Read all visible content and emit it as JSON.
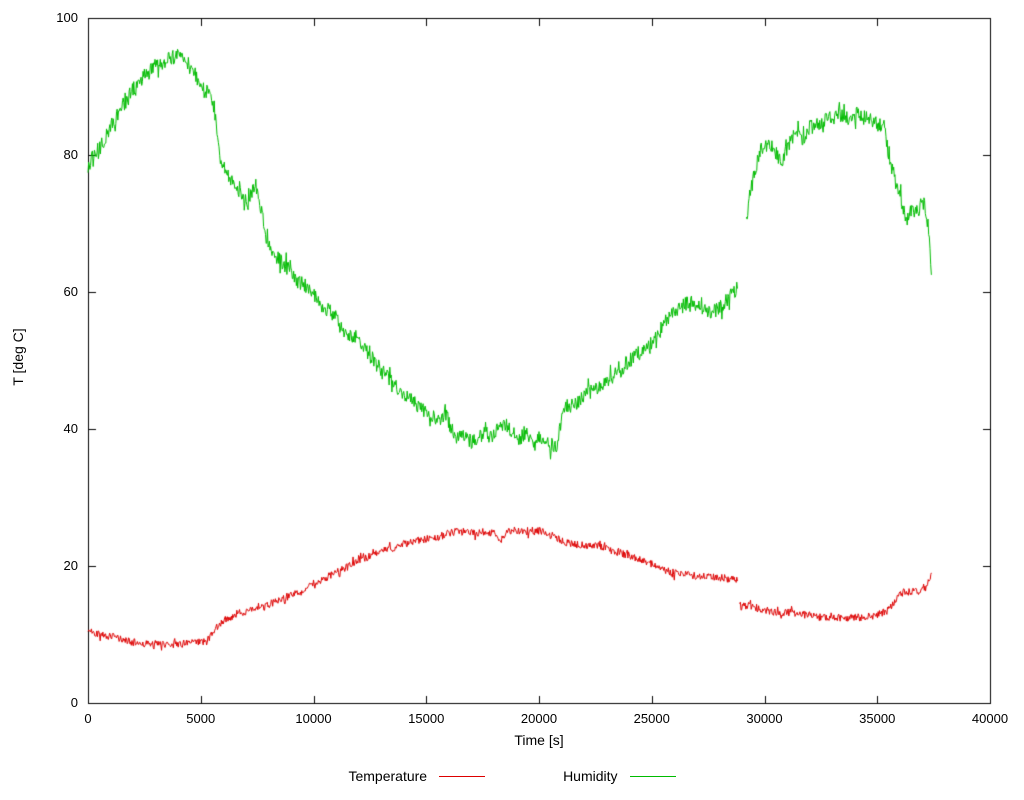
{
  "axes": {
    "x_label": "Time [s]",
    "y_label": "T [deg C]",
    "x_ticks": [
      0,
      5000,
      10000,
      15000,
      20000,
      25000,
      30000,
      35000,
      40000
    ],
    "y_ticks": [
      0,
      20,
      40,
      60,
      80,
      100
    ]
  },
  "chart_data": {
    "type": "line",
    "title": "",
    "xlabel": "Time [s]",
    "ylabel": "T [deg C]",
    "xlim": [
      0,
      40000
    ],
    "ylim": [
      0,
      100
    ],
    "grid": false,
    "legend_position": "bottom-center",
    "series": [
      {
        "name": "Temperature",
        "color": "#dd0000",
        "noise": 0.55,
        "segments": [
          [
            [
              0,
              10.5
            ],
            [
              300,
              10.3
            ],
            [
              600,
              10.0
            ],
            [
              900,
              9.8
            ],
            [
              1200,
              9.6
            ],
            [
              1500,
              9.3
            ],
            [
              1800,
              9.0
            ],
            [
              2100,
              8.8
            ],
            [
              2400,
              8.7
            ],
            [
              2800,
              8.6
            ],
            [
              3200,
              8.6
            ],
            [
              3600,
              8.6
            ],
            [
              4000,
              8.6
            ],
            [
              4400,
              8.7
            ],
            [
              4800,
              8.8
            ],
            [
              5200,
              9.0
            ],
            [
              5500,
              10.0
            ],
            [
              5800,
              11.5
            ],
            [
              6000,
              12.0
            ],
            [
              6300,
              12.5
            ],
            [
              6600,
              13.0
            ],
            [
              6900,
              13.3
            ],
            [
              7200,
              13.5
            ],
            [
              7500,
              13.6
            ],
            [
              7800,
              14.0
            ],
            [
              8100,
              14.5
            ],
            [
              8400,
              15.0
            ],
            [
              8700,
              15.3
            ],
            [
              9000,
              15.8
            ],
            [
              9300,
              16.0
            ],
            [
              9600,
              16.5
            ],
            [
              10000,
              17.5
            ],
            [
              10400,
              18.0
            ],
            [
              10800,
              18.7
            ],
            [
              11200,
              19.3
            ],
            [
              11600,
              20.0
            ],
            [
              12000,
              20.8
            ],
            [
              12400,
              21.3
            ],
            [
              12800,
              21.8
            ],
            [
              13200,
              22.3
            ],
            [
              13600,
              22.7
            ],
            [
              14000,
              23.2
            ],
            [
              14400,
              23.6
            ],
            [
              14800,
              23.8
            ],
            [
              15200,
              24.0
            ],
            [
              15600,
              24.3
            ],
            [
              16000,
              24.8
            ],
            [
              16400,
              25.0
            ],
            [
              16800,
              25.0
            ],
            [
              17200,
              24.8
            ],
            [
              17600,
              25.0
            ],
            [
              18000,
              24.8
            ],
            [
              18300,
              23.8
            ],
            [
              18600,
              25.0
            ],
            [
              19000,
              25.2
            ],
            [
              19400,
              25.0
            ],
            [
              19800,
              25.2
            ],
            [
              20200,
              25.0
            ],
            [
              20500,
              24.5
            ],
            [
              20800,
              24.0
            ],
            [
              21100,
              23.5
            ],
            [
              21500,
              23.2
            ],
            [
              22000,
              23.0
            ],
            [
              22500,
              23.0
            ],
            [
              23000,
              22.5
            ],
            [
              23500,
              22.0
            ],
            [
              24000,
              21.5
            ],
            [
              24500,
              21.0
            ],
            [
              25000,
              20.3
            ],
            [
              25500,
              19.5
            ],
            [
              26000,
              19.0
            ],
            [
              26500,
              18.8
            ],
            [
              27000,
              18.5
            ],
            [
              27400,
              18.5
            ],
            [
              27800,
              18.3
            ],
            [
              28200,
              18.3
            ],
            [
              28600,
              18.0
            ],
            [
              28800,
              17.8
            ]
          ],
          [
            [
              28900,
              14.5
            ],
            [
              29200,
              14.2
            ],
            [
              29500,
              14.0
            ],
            [
              29800,
              13.8
            ],
            [
              30100,
              13.5
            ],
            [
              30400,
              13.3
            ],
            [
              30800,
              13.2
            ],
            [
              31200,
              13.2
            ],
            [
              31600,
              13.0
            ],
            [
              32000,
              12.8
            ],
            [
              32400,
              12.5
            ],
            [
              32800,
              12.5
            ],
            [
              33200,
              12.5
            ],
            [
              33600,
              12.4
            ],
            [
              34000,
              12.5
            ],
            [
              34400,
              12.5
            ],
            [
              34800,
              12.7
            ],
            [
              35100,
              13.0
            ],
            [
              35400,
              13.3
            ],
            [
              35600,
              14.0
            ],
            [
              35800,
              15.0
            ],
            [
              36000,
              15.8
            ],
            [
              36200,
              16.2
            ],
            [
              36500,
              16.3
            ],
            [
              36800,
              16.3
            ],
            [
              37000,
              16.5
            ],
            [
              37200,
              17.0
            ],
            [
              37350,
              18.5
            ],
            [
              37400,
              19.0
            ]
          ]
        ]
      },
      {
        "name": "Humidity",
        "color": "#00bb00",
        "noise": 1.1,
        "segments": [
          [
            [
              0,
              78
            ],
            [
              200,
              80
            ],
            [
              400,
              80.5
            ],
            [
              700,
              82
            ],
            [
              1000,
              84
            ],
            [
              1500,
              87
            ],
            [
              2000,
              89.5
            ],
            [
              2500,
              91.5
            ],
            [
              3000,
              93
            ],
            [
              3500,
              94
            ],
            [
              4000,
              94.5
            ],
            [
              4300,
              94
            ],
            [
              4600,
              92.5
            ],
            [
              5000,
              90.5
            ],
            [
              5300,
              89
            ],
            [
              5600,
              87
            ],
            [
              5750,
              82
            ],
            [
              5900,
              79
            ],
            [
              6100,
              78
            ],
            [
              6300,
              76.5
            ],
            [
              6600,
              75
            ],
            [
              6900,
              73.5
            ],
            [
              7100,
              73
            ],
            [
              7300,
              75
            ],
            [
              7500,
              74.5
            ],
            [
              7700,
              72
            ],
            [
              7900,
              68
            ],
            [
              8100,
              66
            ],
            [
              8400,
              65
            ],
            [
              8700,
              64
            ],
            [
              9000,
              63
            ],
            [
              9300,
              61.5
            ],
            [
              9600,
              61
            ],
            [
              10000,
              59.5
            ],
            [
              10400,
              58
            ],
            [
              10800,
              57
            ],
            [
              11200,
              55
            ],
            [
              11600,
              53.5
            ],
            [
              12000,
              53
            ],
            [
              12400,
              51
            ],
            [
              12800,
              49.5
            ],
            [
              13200,
              48
            ],
            [
              13600,
              46.5
            ],
            [
              14000,
              45
            ],
            [
              14400,
              44
            ],
            [
              14800,
              43
            ],
            [
              15200,
              42
            ],
            [
              15600,
              41
            ],
            [
              15900,
              42
            ],
            [
              16100,
              40
            ],
            [
              16400,
              38.5
            ],
            [
              16700,
              39
            ],
            [
              17000,
              38
            ],
            [
              17300,
              38.5
            ],
            [
              17600,
              39.5
            ],
            [
              17900,
              38.5
            ],
            [
              18200,
              40
            ],
            [
              18500,
              40.5
            ],
            [
              18800,
              39.5
            ],
            [
              19100,
              38.5
            ],
            [
              19400,
              39.5
            ],
            [
              19700,
              38.5
            ],
            [
              20000,
              39
            ],
            [
              20300,
              38
            ],
            [
              20600,
              37.5
            ],
            [
              20800,
              37
            ],
            [
              20900,
              40
            ],
            [
              21100,
              43
            ],
            [
              21400,
              43.5
            ],
            [
              21700,
              44
            ],
            [
              22000,
              45
            ],
            [
              22400,
              45.5
            ],
            [
              22800,
              46.5
            ],
            [
              23200,
              47.5
            ],
            [
              23600,
              48.5
            ],
            [
              24000,
              50
            ],
            [
              24400,
              51
            ],
            [
              24800,
              52
            ],
            [
              25200,
              53.5
            ],
            [
              25500,
              55
            ],
            [
              25800,
              56.5
            ],
            [
              26100,
              57.5
            ],
            [
              26400,
              58
            ],
            [
              26700,
              58.5
            ],
            [
              27000,
              58
            ],
            [
              27300,
              57.5
            ],
            [
              27600,
              57
            ],
            [
              27900,
              57.5
            ],
            [
              28200,
              58.5
            ],
            [
              28500,
              59.5
            ],
            [
              28800,
              60.5
            ]
          ],
          [
            [
              29200,
              71
            ],
            [
              29400,
              75
            ],
            [
              29600,
              78
            ],
            [
              29800,
              80.5
            ],
            [
              30000,
              81
            ],
            [
              30300,
              81.5
            ],
            [
              30500,
              80.5
            ],
            [
              30700,
              79
            ],
            [
              30900,
              80
            ],
            [
              31100,
              82
            ],
            [
              31400,
              83
            ],
            [
              31700,
              82.5
            ],
            [
              32000,
              84
            ],
            [
              32300,
              84.5
            ],
            [
              32600,
              85
            ],
            [
              32900,
              85.5
            ],
            [
              33200,
              86
            ],
            [
              33500,
              85.5
            ],
            [
              33800,
              85
            ],
            [
              34100,
              86
            ],
            [
              34400,
              85.5
            ],
            [
              34700,
              85
            ],
            [
              35000,
              84.5
            ],
            [
              35300,
              84
            ],
            [
              35500,
              80
            ],
            [
              35700,
              77.5
            ],
            [
              35900,
              75
            ],
            [
              36100,
              73
            ],
            [
              36300,
              70.5
            ],
            [
              36500,
              72
            ],
            [
              36700,
              71.5
            ],
            [
              36900,
              72.5
            ],
            [
              37100,
              73
            ],
            [
              37250,
              70
            ],
            [
              37400,
              62.5
            ]
          ]
        ]
      }
    ]
  }
}
